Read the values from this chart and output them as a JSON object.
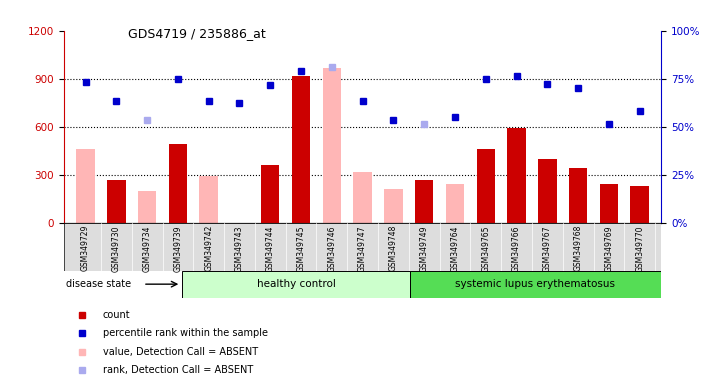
{
  "title": "GDS4719 / 235886_at",
  "samples": [
    "GSM349729",
    "GSM349730",
    "GSM349734",
    "GSM349739",
    "GSM349742",
    "GSM349743",
    "GSM349744",
    "GSM349745",
    "GSM349746",
    "GSM349747",
    "GSM349748",
    "GSM349749",
    "GSM349764",
    "GSM349765",
    "GSM349766",
    "GSM349767",
    "GSM349768",
    "GSM349769",
    "GSM349770"
  ],
  "count_values": [
    null,
    270,
    null,
    490,
    null,
    null,
    360,
    920,
    null,
    null,
    null,
    270,
    null,
    460,
    590,
    400,
    340,
    240,
    230
  ],
  "absent_value_values": [
    460,
    null,
    200,
    null,
    290,
    null,
    null,
    null,
    970,
    315,
    210,
    null,
    245,
    null,
    null,
    null,
    null,
    null,
    null
  ],
  "percentile_rank": [
    880,
    760,
    null,
    900,
    760,
    750,
    860,
    950,
    null,
    760,
    640,
    null,
    660,
    900,
    920,
    870,
    840,
    620,
    700
  ],
  "absent_rank_values": [
    null,
    null,
    640,
    null,
    null,
    null,
    null,
    null,
    975,
    null,
    null,
    620,
    null,
    null,
    null,
    null,
    null,
    null,
    null
  ],
  "group_split": 9,
  "group1_label": "healthy control",
  "group2_label": "systemic lupus erythematosus",
  "ylim_left": [
    0,
    1200
  ],
  "ylim_right": [
    0,
    100
  ],
  "yticks_left": [
    0,
    300,
    600,
    900,
    1200
  ],
  "yticks_right": [
    0,
    25,
    50,
    75,
    100
  ],
  "bar_color_count": "#cc0000",
  "bar_color_absent_value": "#ffb6b6",
  "dot_color_rank": "#0000cc",
  "dot_color_absent_rank": "#aaaaee",
  "group1_color": "#ccffcc",
  "group2_color": "#55dd55",
  "legend_items": [
    {
      "label": "count",
      "color": "#cc0000"
    },
    {
      "label": "percentile rank within the sample",
      "color": "#0000cc"
    },
    {
      "label": "value, Detection Call = ABSENT",
      "color": "#ffb6b6"
    },
    {
      "label": "rank, Detection Call = ABSENT",
      "color": "#aaaaee"
    }
  ]
}
